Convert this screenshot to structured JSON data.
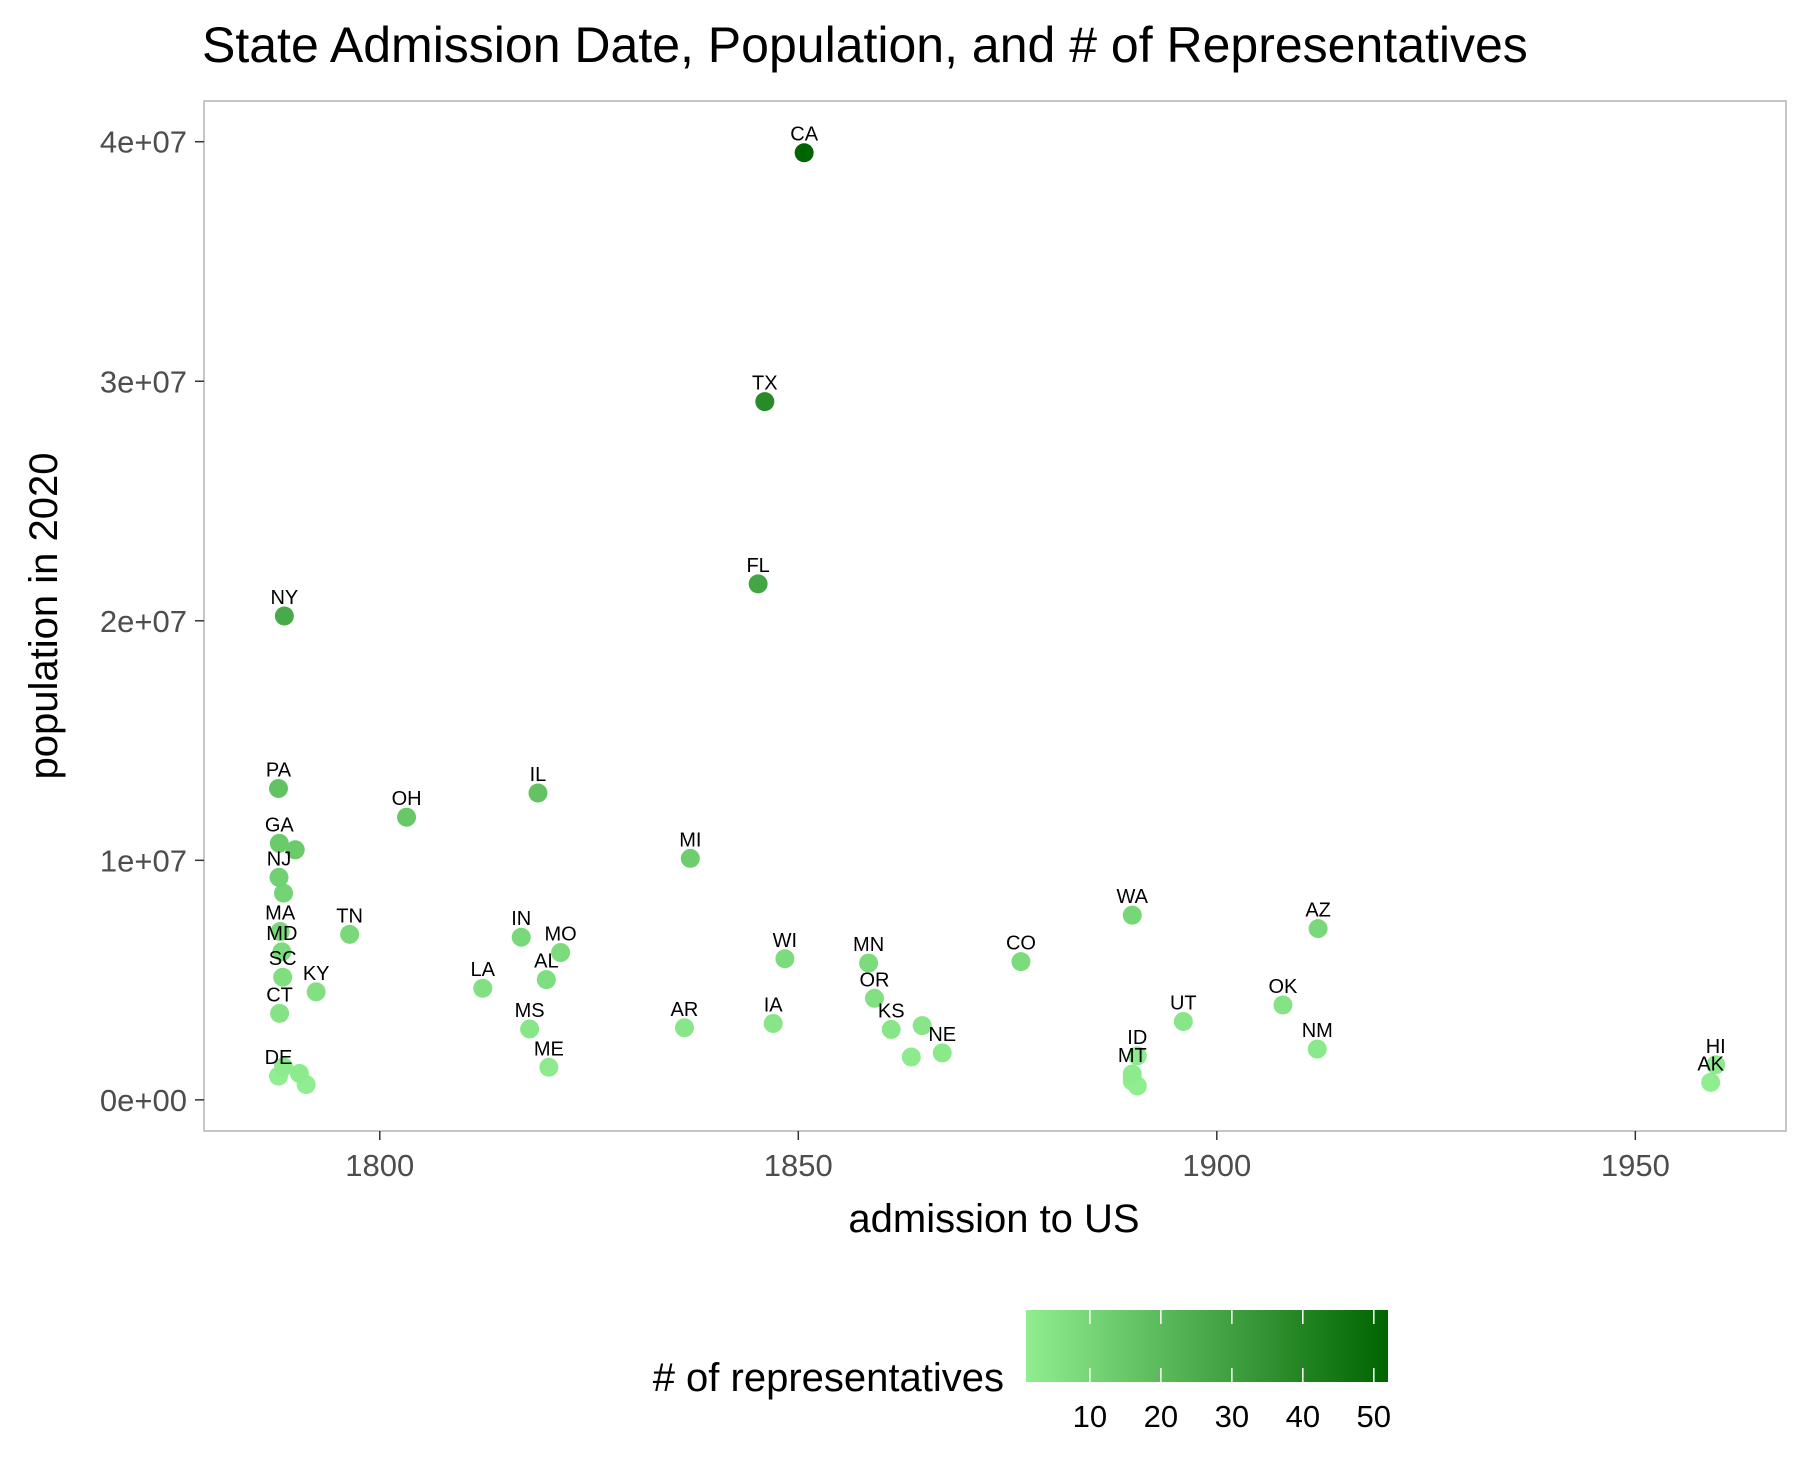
{
  "chart_data": {
    "type": "scatter",
    "title": "State Admission Date, Population, and # of Representatives",
    "xlabel": "admission to US",
    "ylabel": "population in 2020",
    "xlim": [
      1779,
      1968
    ],
    "ylim": [
      -1300000,
      41700000
    ],
    "x_ticks": [
      1800,
      1850,
      1900,
      1950
    ],
    "x_tick_labels": [
      "1800",
      "1850",
      "1900",
      "1950"
    ],
    "y_ticks": [
      0,
      10000000,
      20000000,
      30000000,
      40000000
    ],
    "y_tick_labels": [
      "0e+00",
      "1e+07",
      "2e+07",
      "3e+07",
      "4e+07"
    ],
    "grid": false,
    "legend": {
      "title": "# of representatives",
      "position": "bottom",
      "min": 1,
      "max": 52,
      "ticks": [
        10,
        20,
        30,
        40,
        50
      ],
      "tick_labels": [
        "10",
        "20",
        "30",
        "40",
        "50"
      ],
      "color_low": "#90ee90",
      "color_high": "#006400"
    },
    "points": [
      {
        "label": "DE",
        "x": 1787.9,
        "y": 990000,
        "reps": 1
      },
      {
        "label": "PA",
        "x": 1787.9,
        "y": 13000000,
        "reps": 17
      },
      {
        "label": "NJ",
        "x": 1787.96,
        "y": 9290000,
        "reps": 12
      },
      {
        "label": "GA",
        "x": 1788.0,
        "y": 10710000,
        "reps": 14
      },
      {
        "label": "CT",
        "x": 1788.03,
        "y": 3610000,
        "reps": 5
      },
      {
        "label": "MA",
        "x": 1788.1,
        "y": 7030000,
        "reps": 9
      },
      {
        "label": "MD",
        "x": 1788.3,
        "y": 6180000,
        "reps": 8
      },
      {
        "label": "SC",
        "x": 1788.4,
        "y": 5120000,
        "reps": 7
      },
      {
        "label": "",
        "x": 1788.5,
        "y": 1380000,
        "reps": 2
      },
      {
        "label": "",
        "x": 1788.5,
        "y": 8630000,
        "reps": 11
      },
      {
        "label": "NY",
        "x": 1788.6,
        "y": 20200000,
        "reps": 26
      },
      {
        "label": "",
        "x": 1789.9,
        "y": 10440000,
        "reps": 14
      },
      {
        "label": "",
        "x": 1790.4,
        "y": 1100000,
        "reps": 2
      },
      {
        "label": "",
        "x": 1791.2,
        "y": 640000,
        "reps": 1
      },
      {
        "label": "KY",
        "x": 1792.4,
        "y": 4510000,
        "reps": 6
      },
      {
        "label": "TN",
        "x": 1796.4,
        "y": 6910000,
        "reps": 9
      },
      {
        "label": "OH",
        "x": 1803.2,
        "y": 11800000,
        "reps": 15
      },
      {
        "label": "LA",
        "x": 1812.3,
        "y": 4660000,
        "reps": 6
      },
      {
        "label": "IN",
        "x": 1816.9,
        "y": 6790000,
        "reps": 9
      },
      {
        "label": "MS",
        "x": 1817.9,
        "y": 2960000,
        "reps": 4
      },
      {
        "label": "IL",
        "x": 1818.9,
        "y": 12810000,
        "reps": 17
      },
      {
        "label": "AL",
        "x": 1819.9,
        "y": 5020000,
        "reps": 7
      },
      {
        "label": "ME",
        "x": 1820.2,
        "y": 1360000,
        "reps": 2
      },
      {
        "label": "MO",
        "x": 1821.6,
        "y": 6150000,
        "reps": 8
      },
      {
        "label": "AR",
        "x": 1836.4,
        "y": 3010000,
        "reps": 4
      },
      {
        "label": "MI",
        "x": 1837.1,
        "y": 10080000,
        "reps": 13
      },
      {
        "label": "FL",
        "x": 1845.2,
        "y": 21540000,
        "reps": 28
      },
      {
        "label": "TX",
        "x": 1846.0,
        "y": 29150000,
        "reps": 38
      },
      {
        "label": "IA",
        "x": 1847.0,
        "y": 3190000,
        "reps": 4
      },
      {
        "label": "WI",
        "x": 1848.4,
        "y": 5890000,
        "reps": 8
      },
      {
        "label": "CA",
        "x": 1850.7,
        "y": 39540000,
        "reps": 52
      },
      {
        "label": "MN",
        "x": 1858.4,
        "y": 5710000,
        "reps": 8
      },
      {
        "label": "OR",
        "x": 1859.1,
        "y": 4240000,
        "reps": 6
      },
      {
        "label": "KS",
        "x": 1861.1,
        "y": 2940000,
        "reps": 4
      },
      {
        "label": "",
        "x": 1863.5,
        "y": 1790000,
        "reps": 2
      },
      {
        "label": "",
        "x": 1864.8,
        "y": 3100000,
        "reps": 4
      },
      {
        "label": "NE",
        "x": 1867.2,
        "y": 1960000,
        "reps": 3
      },
      {
        "label": "CO",
        "x": 1876.6,
        "y": 5770000,
        "reps": 8
      },
      {
        "label": "",
        "x": 1889.9,
        "y": 780000,
        "reps": 1
      },
      {
        "label": "",
        "x": 1889.9,
        "y": 890000,
        "reps": 1
      },
      {
        "label": "MT",
        "x": 1889.9,
        "y": 1080000,
        "reps": 2
      },
      {
        "label": "WA",
        "x": 1889.9,
        "y": 7710000,
        "reps": 10
      },
      {
        "label": "ID",
        "x": 1890.5,
        "y": 1840000,
        "reps": 2
      },
      {
        "label": "",
        "x": 1890.5,
        "y": 580000,
        "reps": 1
      },
      {
        "label": "UT",
        "x": 1896.0,
        "y": 3270000,
        "reps": 4
      },
      {
        "label": "OK",
        "x": 1907.9,
        "y": 3960000,
        "reps": 5
      },
      {
        "label": "NM",
        "x": 1912.0,
        "y": 2120000,
        "reps": 3
      },
      {
        "label": "AZ",
        "x": 1912.1,
        "y": 7150000,
        "reps": 9
      },
      {
        "label": "AK",
        "x": 1959.0,
        "y": 730000,
        "reps": 1
      },
      {
        "label": "HI",
        "x": 1959.6,
        "y": 1460000,
        "reps": 2
      }
    ]
  }
}
